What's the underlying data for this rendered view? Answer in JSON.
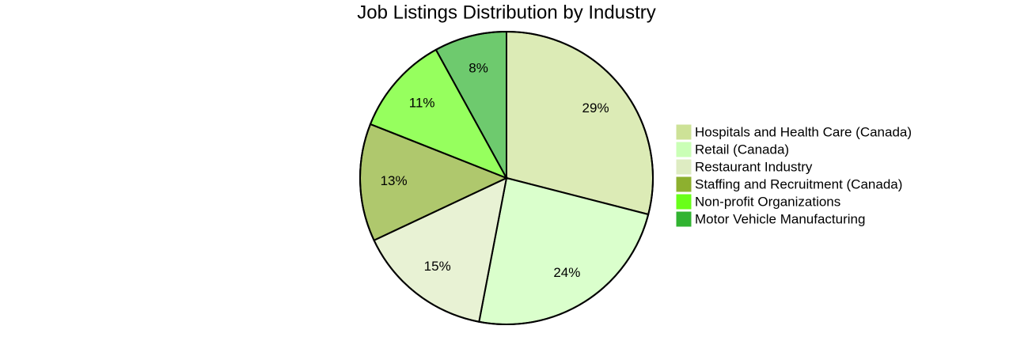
{
  "chart_data": {
    "type": "pie",
    "title": "Job Listings Distribution by Industry",
    "categories": [
      "Hospitals and Health Care (Canada)",
      "Retail (Canada)",
      "Restaurant Industry",
      "Staffing and Recruitment (Canada)",
      "Non-profit Organizations",
      "Motor Vehicle Manufacturing"
    ],
    "values": [
      29,
      24,
      15,
      13,
      11,
      8
    ],
    "value_labels": [
      "29%",
      "24%",
      "15%",
      "13%",
      "11%",
      "8%"
    ],
    "colors": [
      "#cde297",
      "#caffb6",
      "#deecc2",
      "#8db02f",
      "#69ff19",
      "#31b331"
    ]
  }
}
